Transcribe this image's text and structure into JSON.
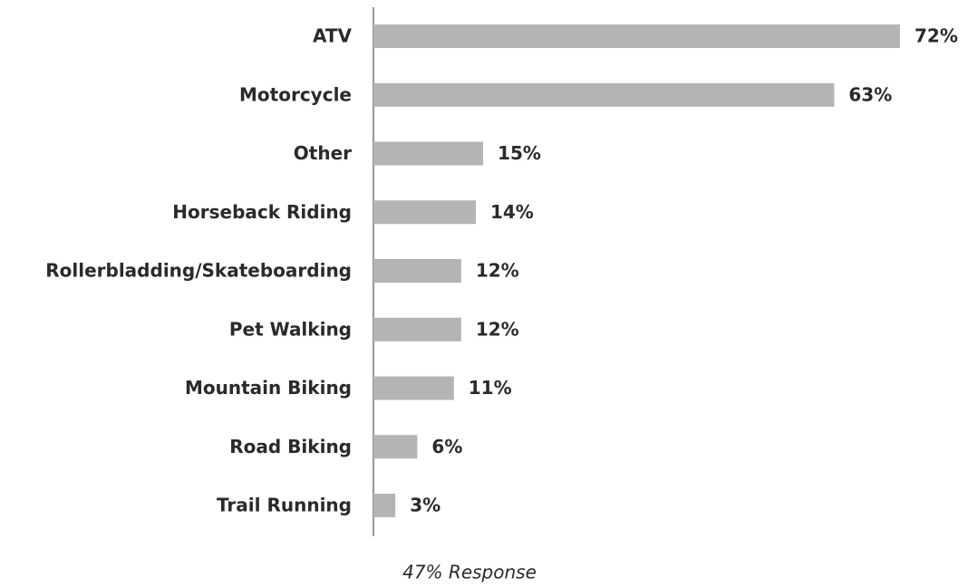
{
  "chart_data": {
    "type": "bar",
    "orientation": "horizontal",
    "categories": [
      "ATV",
      "Motorcycle",
      "Other",
      "Horseback Riding",
      "Rollerbladding/Skateboarding",
      "Pet Walking",
      "Mountain Biking",
      "Road Biking",
      "Trail Running"
    ],
    "values": [
      72,
      63,
      15,
      14,
      12,
      12,
      11,
      6,
      3
    ],
    "value_labels": [
      "72%",
      "63%",
      "15%",
      "14%",
      "12%",
      "12%",
      "11%",
      "6%",
      "3%"
    ],
    "color": "#b4b4b4",
    "annotation": "47% Response"
  }
}
